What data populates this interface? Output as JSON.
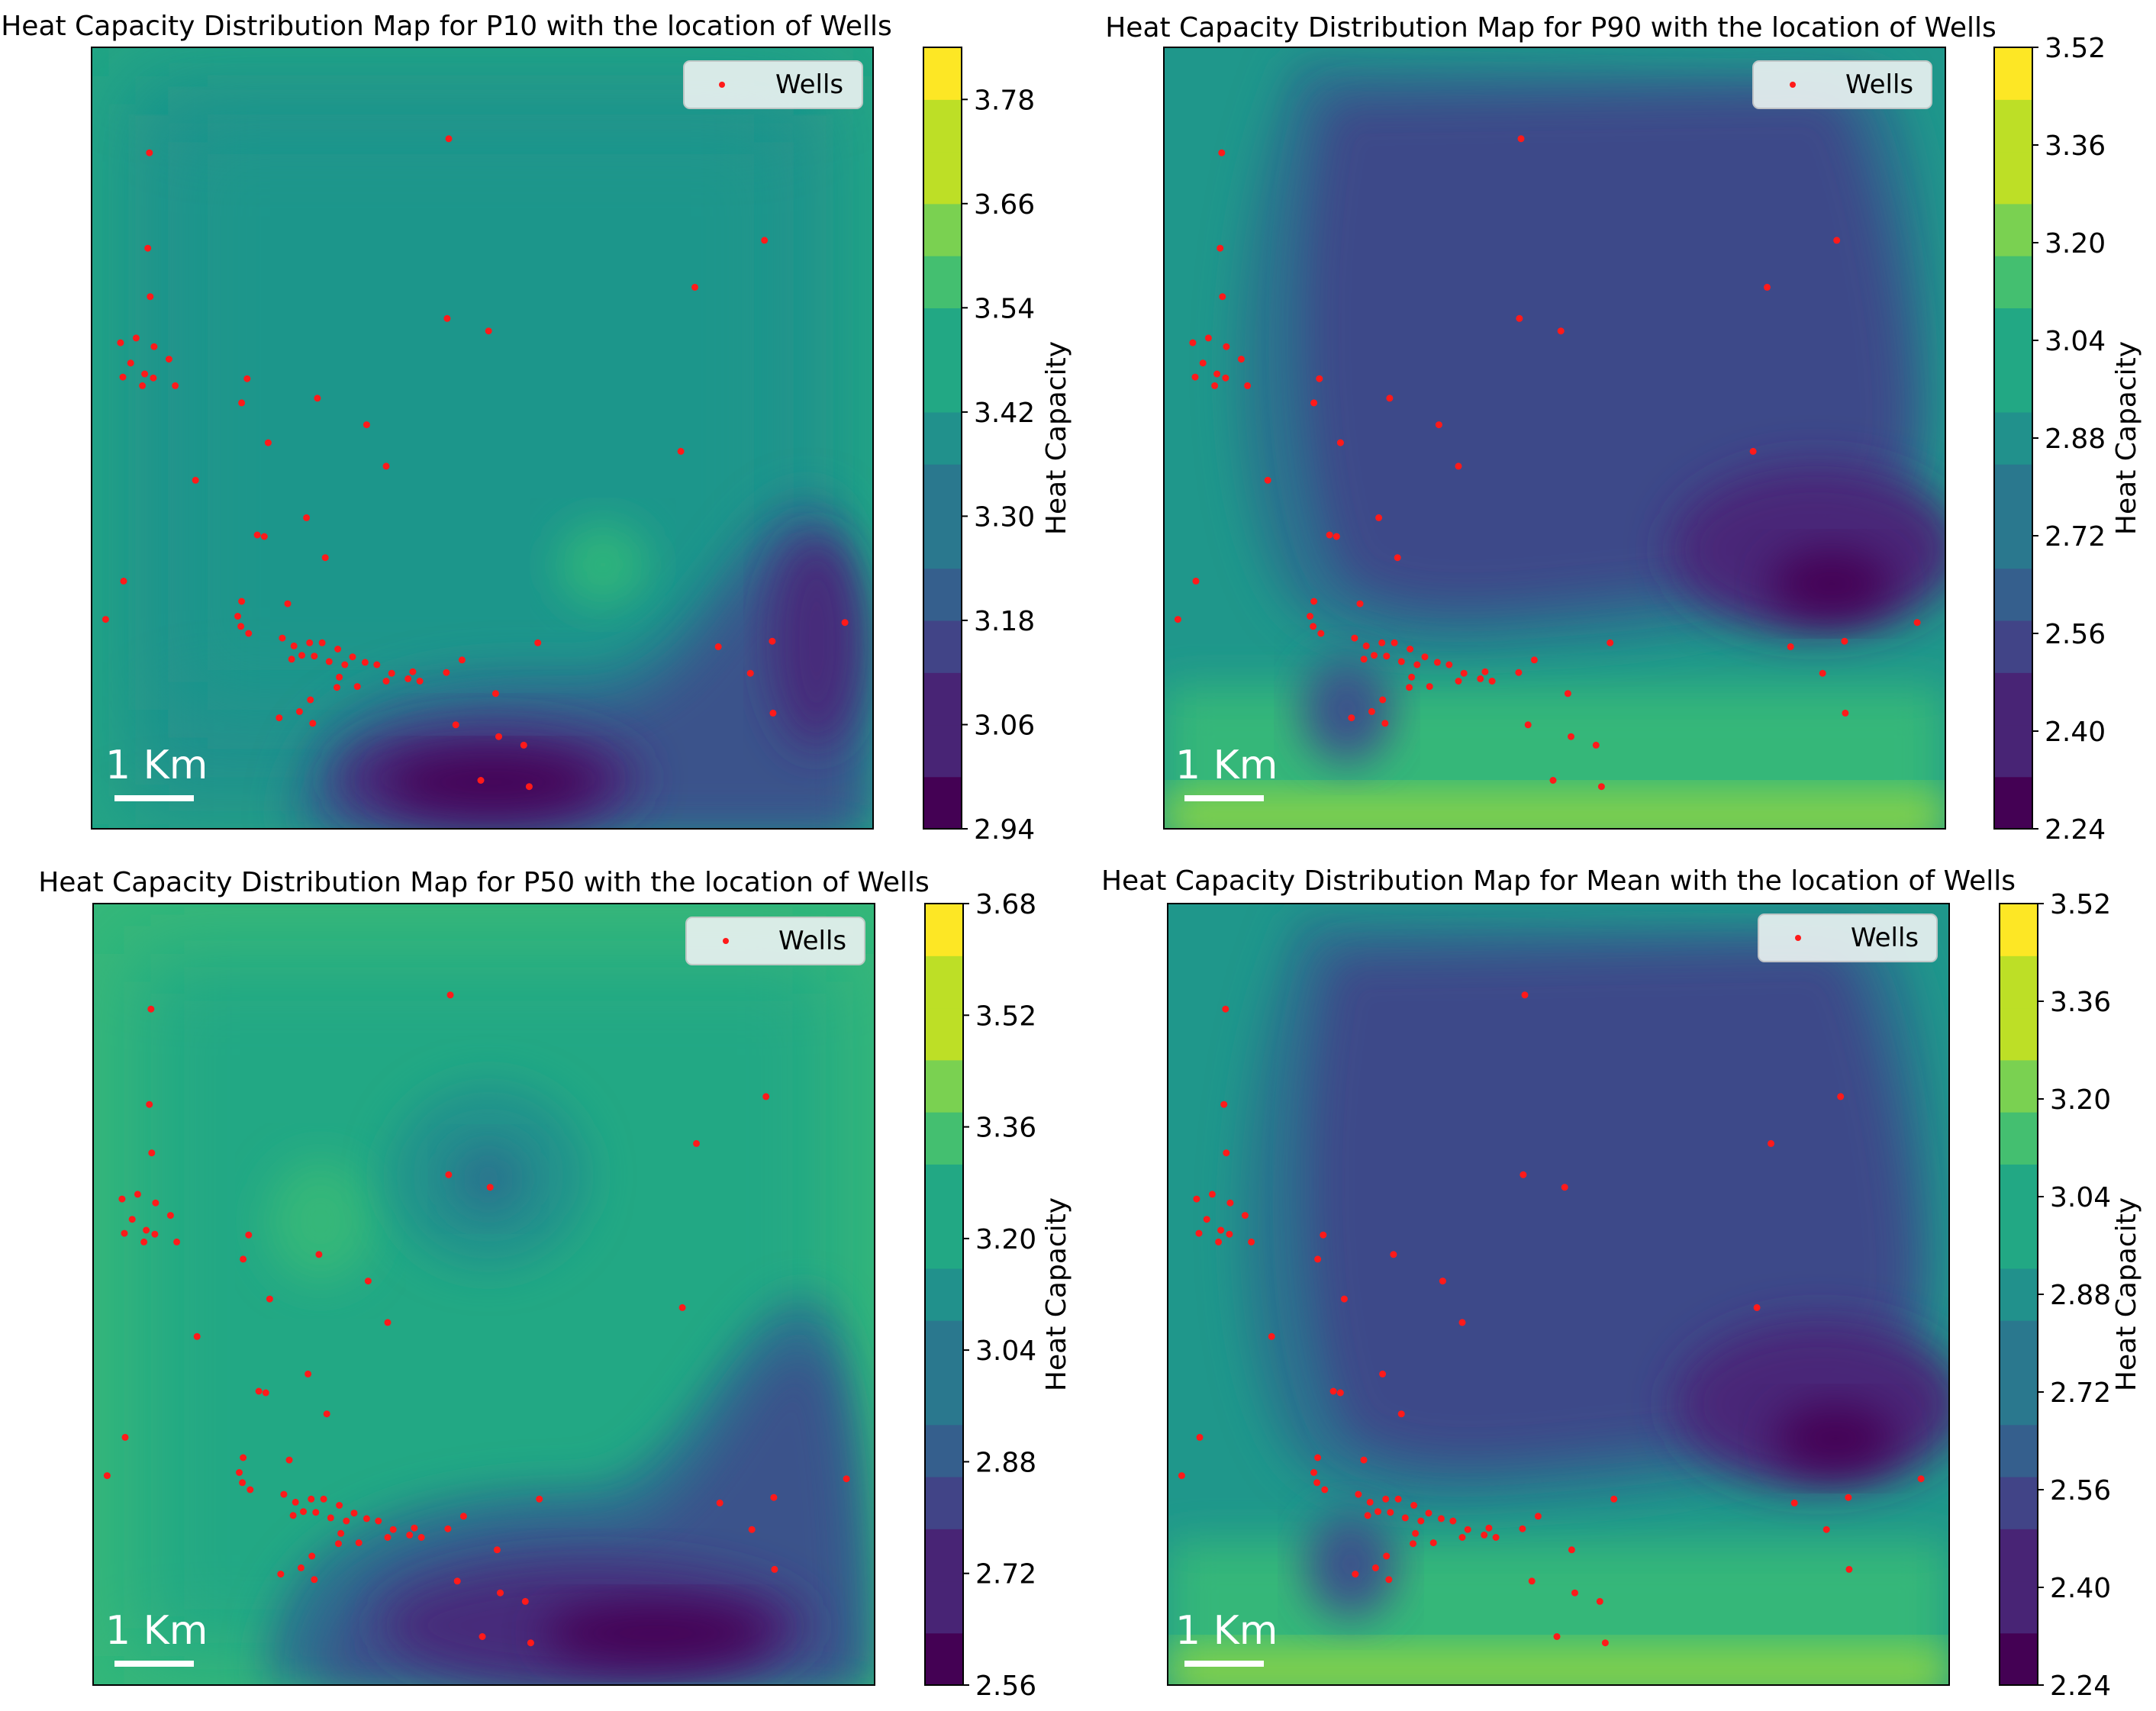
{
  "scale_label": "1 Km",
  "legend_label": "Wells",
  "colorbar_label": "Heat Capacity",
  "colors": {
    "well_marker": "#ff1a1a",
    "legend_box": "#e8f1f0",
    "scale_bar": "#ffffff",
    "viridis_low": "#440154",
    "viridis_high": "#fde725"
  },
  "wells": [
    [
      0.074,
      0.865
    ],
    [
      0.018,
      0.268
    ],
    [
      0.072,
      0.743
    ],
    [
      0.08,
      0.617
    ],
    [
      0.075,
      0.681
    ],
    [
      0.037,
      0.622
    ],
    [
      0.057,
      0.628
    ],
    [
      0.05,
      0.596
    ],
    [
      0.068,
      0.582
    ],
    [
      0.079,
      0.577
    ],
    [
      0.04,
      0.578
    ],
    [
      0.065,
      0.567
    ],
    [
      0.107,
      0.567
    ],
    [
      0.099,
      0.601
    ],
    [
      0.133,
      0.446
    ],
    [
      0.192,
      0.545
    ],
    [
      0.199,
      0.576
    ],
    [
      0.226,
      0.494
    ],
    [
      0.212,
      0.376
    ],
    [
      0.289,
      0.551
    ],
    [
      0.352,
      0.517
    ],
    [
      0.377,
      0.464
    ],
    [
      0.041,
      0.317
    ],
    [
      0.192,
      0.291
    ],
    [
      0.221,
      0.374
    ],
    [
      0.275,
      0.398
    ],
    [
      0.299,
      0.347
    ],
    [
      0.251,
      0.288
    ],
    [
      0.187,
      0.272
    ],
    [
      0.191,
      0.259
    ],
    [
      0.201,
      0.25
    ],
    [
      0.244,
      0.244
    ],
    [
      0.259,
      0.234
    ],
    [
      0.279,
      0.238
    ],
    [
      0.295,
      0.238
    ],
    [
      0.315,
      0.23
    ],
    [
      0.256,
      0.217
    ],
    [
      0.269,
      0.222
    ],
    [
      0.285,
      0.221
    ],
    [
      0.304,
      0.214
    ],
    [
      0.324,
      0.21
    ],
    [
      0.334,
      0.22
    ],
    [
      0.35,
      0.213
    ],
    [
      0.365,
      0.21
    ],
    [
      0.384,
      0.199
    ],
    [
      0.405,
      0.192
    ],
    [
      0.42,
      0.189
    ],
    [
      0.377,
      0.189
    ],
    [
      0.314,
      0.181
    ],
    [
      0.34,
      0.182
    ],
    [
      0.28,
      0.165
    ],
    [
      0.266,
      0.15
    ],
    [
      0.283,
      0.135
    ],
    [
      0.317,
      0.194
    ],
    [
      0.411,
      0.201
    ],
    [
      0.454,
      0.2
    ],
    [
      0.474,
      0.216
    ],
    [
      0.517,
      0.173
    ],
    [
      0.466,
      0.133
    ],
    [
      0.521,
      0.118
    ],
    [
      0.498,
      0.062
    ],
    [
      0.553,
      0.107
    ],
    [
      0.802,
      0.233
    ],
    [
      0.843,
      0.199
    ],
    [
      0.871,
      0.24
    ],
    [
      0.872,
      0.148
    ],
    [
      0.964,
      0.264
    ],
    [
      0.754,
      0.483
    ],
    [
      0.861,
      0.753
    ],
    [
      0.772,
      0.693
    ],
    [
      0.508,
      0.637
    ],
    [
      0.571,
      0.238
    ],
    [
      0.24,
      0.142
    ],
    [
      0.56,
      0.054
    ],
    [
      0.457,
      0.883
    ],
    [
      0.455,
      0.653
    ]
  ],
  "panels": [
    {
      "title": "Heat Capacity Distribution Map for P10 with the location of Wells",
      "ticks": [
        "3.78",
        "3.66",
        "3.54",
        "3.42",
        "3.30",
        "3.18",
        "3.06",
        "2.94"
      ]
    },
    {
      "title": "Heat Capacity Distribution Map for P90 with the location of Wells",
      "ticks": [
        "3.52",
        "3.36",
        "3.20",
        "3.04",
        "2.88",
        "2.72",
        "2.56",
        "2.40",
        "2.24"
      ]
    },
    {
      "title": "Heat Capacity Distribution Map for P50 with the location of Wells",
      "ticks": [
        "3.68",
        "3.52",
        "3.36",
        "3.20",
        "3.04",
        "2.88",
        "2.72",
        "2.56"
      ]
    },
    {
      "title": "Heat Capacity Distribution Map for Mean with the location of Wells",
      "ticks": [
        "3.52",
        "3.36",
        "3.20",
        "3.04",
        "2.88",
        "2.72",
        "2.56",
        "2.40",
        "2.24"
      ]
    }
  ],
  "chart_data": [
    {
      "type": "heatmap",
      "title": "Heat Capacity Distribution Map for P10 with the location of Wells",
      "colorbar_label": "Heat Capacity",
      "colorbar_range": [
        2.94,
        3.84
      ],
      "colorbar_ticks": [
        3.78,
        3.66,
        3.54,
        3.42,
        3.3,
        3.18,
        3.06,
        2.94
      ],
      "legend": [
        "Wells"
      ],
      "legend_position": "top-right",
      "scale_bar": "1 Km"
    },
    {
      "type": "heatmap",
      "title": "Heat Capacity Distribution Map for P90 with the location of Wells",
      "colorbar_label": "Heat Capacity",
      "colorbar_range": [
        2.24,
        3.52
      ],
      "colorbar_ticks": [
        3.52,
        3.36,
        3.2,
        3.04,
        2.88,
        2.72,
        2.56,
        2.4,
        2.24
      ],
      "legend": [
        "Wells"
      ],
      "legend_position": "top-right",
      "scale_bar": "1 Km"
    },
    {
      "type": "heatmap",
      "title": "Heat Capacity Distribution Map for P50 with the location of Wells",
      "colorbar_label": "Heat Capacity",
      "colorbar_range": [
        2.56,
        3.68
      ],
      "colorbar_ticks": [
        3.68,
        3.52,
        3.36,
        3.2,
        3.04,
        2.88,
        2.72,
        2.56
      ],
      "legend": [
        "Wells"
      ],
      "legend_position": "top-right",
      "scale_bar": "1 Km"
    },
    {
      "type": "heatmap",
      "title": "Heat Capacity Distribution Map for Mean with the location of Wells",
      "colorbar_label": "Heat Capacity",
      "colorbar_range": [
        2.24,
        3.52
      ],
      "colorbar_ticks": [
        3.52,
        3.36,
        3.2,
        3.04,
        2.88,
        2.72,
        2.56,
        2.4,
        2.24
      ],
      "legend": [
        "Wells"
      ],
      "legend_position": "top-right",
      "scale_bar": "1 Km"
    }
  ]
}
